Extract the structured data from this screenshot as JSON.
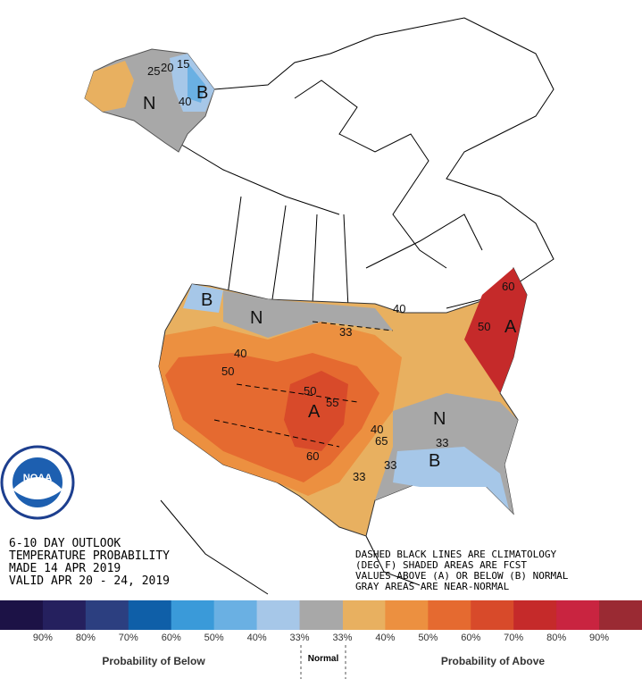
{
  "header": {
    "lines": [
      "6-10 DAY OUTLOOK",
      "TEMPERATURE PROBABILITY",
      "MADE  14 APR 2019",
      "VALID  APR 20 - 24, 2019"
    ]
  },
  "notes": [
    "DASHED BLACK LINES ARE CLIMATOLOGY",
    "(DEG F) SHADED AREAS ARE FCST",
    "VALUES ABOVE (A) OR BELOW (B) NORMAL",
    "GRAY AREAS ARE NEAR-NORMAL"
  ],
  "logo": {
    "text": "NOAA"
  },
  "map": {
    "labels": [
      "N",
      "B",
      "B",
      "N",
      "A",
      "N",
      "B",
      "A",
      "33",
      "40",
      "50",
      "60",
      "50",
      "55",
      "65",
      "33",
      "40",
      "40",
      "50",
      "60",
      "33",
      "33",
      "40",
      "20",
      "15",
      "25"
    ]
  },
  "legend": {
    "items": [
      {
        "label": "90%",
        "color": "#1c1246"
      },
      {
        "label": "80%",
        "color": "#25205e"
      },
      {
        "label": "70%",
        "color": "#2c3f80"
      },
      {
        "label": "60%",
        "color": "#0f5fa8"
      },
      {
        "label": "50%",
        "color": "#3a9ad9"
      },
      {
        "label": "40%",
        "color": "#6ab0e3"
      },
      {
        "label": "33%",
        "color": "#a6c7e8"
      },
      {
        "label": "33%",
        "color": "#e8b060"
      },
      {
        "label": "40%",
        "color": "#ec9040"
      },
      {
        "label": "50%",
        "color": "#e56a30"
      },
      {
        "label": "60%",
        "color": "#d84a2a"
      },
      {
        "label": "70%",
        "color": "#c52a2a"
      },
      {
        "label": "80%",
        "color": "#c92440"
      },
      {
        "label": "90%",
        "color": "#9a2a33"
      }
    ],
    "normal_color": "#a8a8a8",
    "normal": "Normal",
    "below": "Probability of Below",
    "above": "Probability of Above"
  }
}
